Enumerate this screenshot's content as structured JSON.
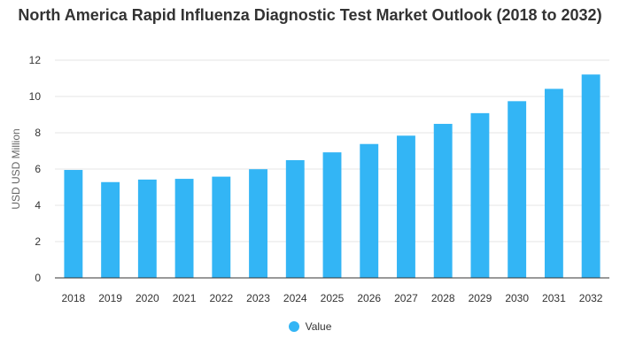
{
  "chart_data": {
    "type": "bar",
    "title": "North America Rapid Influenza Diagnostic Test Market Outlook (2018 to 2032)",
    "xlabel": "",
    "ylabel": "USD USD Million",
    "ylim": [
      0,
      12
    ],
    "yticks": [
      0,
      2,
      4,
      6,
      8,
      10,
      12
    ],
    "grid": true,
    "legend_position": "bottom",
    "categories": [
      "2018",
      "2019",
      "2020",
      "2021",
      "2022",
      "2023",
      "2024",
      "2025",
      "2026",
      "2027",
      "2028",
      "2029",
      "2030",
      "2031",
      "2032"
    ],
    "series": [
      {
        "name": "Value",
        "color": "#33b5f5",
        "values": [
          5.95,
          5.28,
          5.42,
          5.46,
          5.58,
          5.99,
          6.49,
          6.92,
          7.38,
          7.84,
          8.49,
          9.08,
          9.74,
          10.42,
          11.21
        ]
      }
    ]
  }
}
